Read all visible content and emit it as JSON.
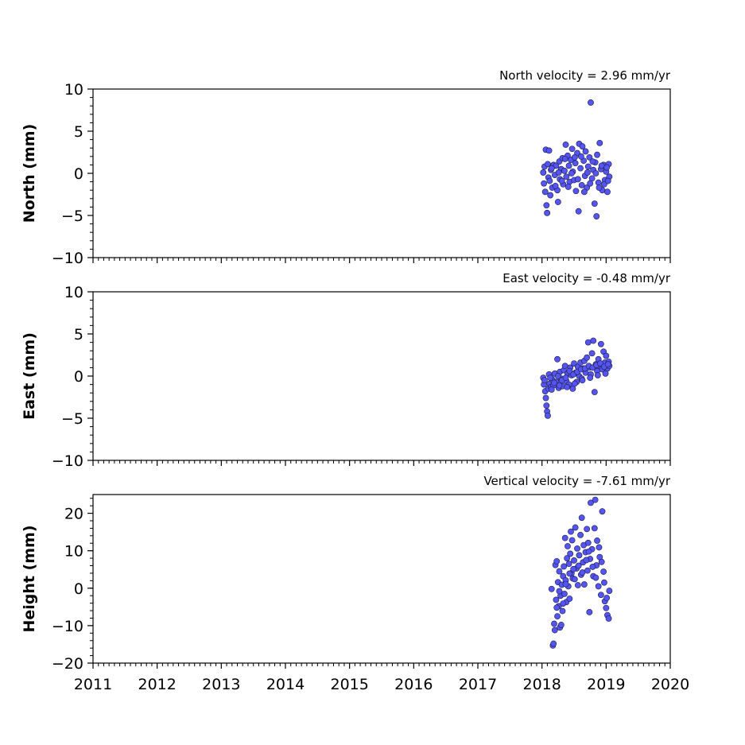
{
  "chart_data": [
    {
      "type": "scatter",
      "title": "North velocity = 2.96 mm/yr",
      "ylabel": "North (mm)",
      "xlim": [
        2011,
        2020
      ],
      "ylim": [
        -10,
        10
      ],
      "yticks": [
        -10,
        -5,
        0,
        5,
        10
      ],
      "ytick_labels": [
        "−10",
        "−5",
        "0",
        "5",
        "10"
      ],
      "xtick_labels": [],
      "series": [
        {
          "color": "#5555f5",
          "points": [
            [
              2018.02,
              0.1
            ],
            [
              2018.03,
              -1.2
            ],
            [
              2018.04,
              0.8
            ],
            [
              2018.05,
              -2.2
            ],
            [
              2018.06,
              2.8
            ],
            [
              2018.07,
              -3.8
            ],
            [
              2018.08,
              -4.7
            ],
            [
              2018.09,
              1.1
            ],
            [
              2018.1,
              -0.5
            ],
            [
              2018.11,
              2.7
            ],
            [
              2018.12,
              -0.9
            ],
            [
              2018.13,
              -2.6
            ],
            [
              2018.14,
              0.4
            ],
            [
              2018.16,
              -1.7
            ],
            [
              2018.18,
              1.0
            ],
            [
              2018.2,
              -0.2
            ],
            [
              2018.22,
              0.9
            ],
            [
              2018.24,
              -2.0
            ],
            [
              2018.25,
              -3.4
            ],
            [
              2018.27,
              1.4
            ],
            [
              2018.28,
              -0.7
            ],
            [
              2018.3,
              0.5
            ],
            [
              2018.32,
              1.8
            ],
            [
              2018.33,
              -1.3
            ],
            [
              2018.35,
              0.3
            ],
            [
              2018.37,
              3.4
            ],
            [
              2018.38,
              -0.4
            ],
            [
              2018.4,
              2.1
            ],
            [
              2018.42,
              0.9
            ],
            [
              2018.43,
              -1.0
            ],
            [
              2018.45,
              1.6
            ],
            [
              2018.47,
              2.9
            ],
            [
              2018.48,
              0.2
            ],
            [
              2018.5,
              -0.8
            ],
            [
              2018.52,
              1.2
            ],
            [
              2018.53,
              -2.1
            ],
            [
              2018.55,
              2.4
            ],
            [
              2018.57,
              -4.5
            ],
            [
              2018.58,
              3.5
            ],
            [
              2018.6,
              0.6
            ],
            [
              2018.62,
              -1.4
            ],
            [
              2018.63,
              3.2
            ],
            [
              2018.65,
              1.5
            ],
            [
              2018.67,
              -0.3
            ],
            [
              2018.68,
              2.6
            ],
            [
              2018.7,
              -1.7
            ],
            [
              2018.72,
              0.8
            ],
            [
              2018.74,
              1.9
            ],
            [
              2018.76,
              8.4
            ],
            [
              2018.78,
              -0.6
            ],
            [
              2018.8,
              0.4
            ],
            [
              2018.82,
              -3.6
            ],
            [
              2018.83,
              1.3
            ],
            [
              2018.85,
              -5.1
            ],
            [
              2018.86,
              2.2
            ],
            [
              2018.88,
              -1.1
            ],
            [
              2018.9,
              3.6
            ],
            [
              2018.92,
              0.5
            ],
            [
              2018.94,
              -2.0
            ],
            [
              2018.96,
              1.0
            ],
            [
              2018.98,
              -0.8
            ],
            [
              2019.0,
              0.2
            ],
            [
              2019.02,
              -2.2
            ],
            [
              2019.04,
              1.1
            ],
            [
              2019.05,
              -0.4
            ],
            [
              2018.15,
              0.6
            ],
            [
              2018.21,
              -1.5
            ],
            [
              2018.26,
              0.1
            ],
            [
              2018.31,
              -0.9
            ],
            [
              2018.36,
              1.7
            ],
            [
              2018.41,
              -1.6
            ],
            [
              2018.46,
              0.0
            ],
            [
              2018.51,
              1.9
            ],
            [
              2018.56,
              -0.7
            ],
            [
              2018.61,
              2.0
            ],
            [
              2018.66,
              -2.2
            ],
            [
              2018.71,
              0.1
            ],
            [
              2018.75,
              -1.2
            ],
            [
              2018.79,
              1.4
            ],
            [
              2018.84,
              0.0
            ],
            [
              2018.89,
              -1.7
            ],
            [
              2018.93,
              0.9
            ],
            [
              2018.97,
              -1.3
            ],
            [
              2019.01,
              0.7
            ],
            [
              2019.03,
              -0.9
            ]
          ]
        }
      ]
    },
    {
      "type": "scatter",
      "title": "East velocity = -0.48 mm/yr",
      "ylabel": "East (mm)",
      "xlim": [
        2011,
        2020
      ],
      "ylim": [
        -10,
        10
      ],
      "yticks": [
        -10,
        -5,
        0,
        5,
        10
      ],
      "ytick_labels": [
        "−10",
        "−5",
        "0",
        "5",
        "10"
      ],
      "xtick_labels": [],
      "series": [
        {
          "color": "#5555f5",
          "points": [
            [
              2018.02,
              -0.2
            ],
            [
              2018.03,
              -1.0
            ],
            [
              2018.04,
              -0.5
            ],
            [
              2018.05,
              -1.8
            ],
            [
              2018.06,
              -2.6
            ],
            [
              2018.07,
              -3.5
            ],
            [
              2018.08,
              -4.2
            ],
            [
              2018.09,
              -4.7
            ],
            [
              2018.1,
              -1.5
            ],
            [
              2018.11,
              0.2
            ],
            [
              2018.12,
              -0.9
            ],
            [
              2018.14,
              -1.3
            ],
            [
              2018.16,
              -0.4
            ],
            [
              2018.18,
              -1.1
            ],
            [
              2018.2,
              0.3
            ],
            [
              2018.22,
              -0.7
            ],
            [
              2018.24,
              2.0
            ],
            [
              2018.26,
              -1.4
            ],
            [
              2018.28,
              0.5
            ],
            [
              2018.3,
              -0.3
            ],
            [
              2018.32,
              -1.2
            ],
            [
              2018.34,
              0.7
            ],
            [
              2018.36,
              1.2
            ],
            [
              2018.38,
              -0.6
            ],
            [
              2018.4,
              0.3
            ],
            [
              2018.42,
              -1.0
            ],
            [
              2018.44,
              1.0
            ],
            [
              2018.46,
              0.1
            ],
            [
              2018.48,
              -1.5
            ],
            [
              2018.5,
              1.5
            ],
            [
              2018.52,
              0.4
            ],
            [
              2018.54,
              -0.7
            ],
            [
              2018.56,
              1.1
            ],
            [
              2018.58,
              0.0
            ],
            [
              2018.6,
              1.6
            ],
            [
              2018.62,
              -0.3
            ],
            [
              2018.64,
              0.9
            ],
            [
              2018.66,
              1.8
            ],
            [
              2018.68,
              0.4
            ],
            [
              2018.7,
              2.2
            ],
            [
              2018.72,
              4.0
            ],
            [
              2018.74,
              1.0
            ],
            [
              2018.76,
              0.2
            ],
            [
              2018.78,
              2.7
            ],
            [
              2018.8,
              4.2
            ],
            [
              2018.82,
              -1.9
            ],
            [
              2018.84,
              1.4
            ],
            [
              2018.86,
              0.6
            ],
            [
              2018.88,
              2.0
            ],
            [
              2018.9,
              1.2
            ],
            [
              2018.92,
              3.8
            ],
            [
              2018.94,
              0.8
            ],
            [
              2018.96,
              2.9
            ],
            [
              2018.98,
              1.6
            ],
            [
              2019.0,
              2.4
            ],
            [
              2019.02,
              0.9
            ],
            [
              2019.04,
              1.7
            ],
            [
              2019.05,
              1.2
            ],
            [
              2018.13,
              -0.2
            ],
            [
              2018.19,
              -0.8
            ],
            [
              2018.25,
              0.0
            ],
            [
              2018.31,
              -0.5
            ],
            [
              2018.37,
              -0.2
            ],
            [
              2018.43,
              0.6
            ],
            [
              2018.49,
              0.2
            ],
            [
              2018.55,
              0.5
            ],
            [
              2018.61,
              0.8
            ],
            [
              2018.67,
              0.9
            ],
            [
              2018.73,
              1.2
            ],
            [
              2018.79,
              1.0
            ],
            [
              2018.85,
              1.3
            ],
            [
              2018.91,
              1.5
            ],
            [
              2018.97,
              1.1
            ],
            [
              2019.03,
              1.4
            ],
            [
              2018.15,
              -1.6
            ],
            [
              2018.27,
              -1.1
            ],
            [
              2018.39,
              -1.3
            ],
            [
              2018.51,
              -0.9
            ],
            [
              2018.63,
              -0.5
            ],
            [
              2018.75,
              -0.2
            ],
            [
              2018.87,
              0.1
            ],
            [
              2018.99,
              0.3
            ]
          ]
        }
      ]
    },
    {
      "type": "scatter",
      "title": "Vertical velocity = -7.61 mm/yr",
      "ylabel": "Height (mm)",
      "xlim": [
        2011,
        2020
      ],
      "ylim": [
        -20,
        25
      ],
      "yticks": [
        -20,
        -10,
        0,
        10,
        20
      ],
      "ytick_labels": [
        "−20",
        "−10",
        "0",
        "10",
        "20"
      ],
      "xticks": [
        2011,
        2012,
        2013,
        2014,
        2015,
        2016,
        2017,
        2018,
        2019,
        2020
      ],
      "xtick_labels": [
        "2011",
        "2012",
        "2013",
        "2014",
        "2015",
        "2016",
        "2017",
        "2018",
        "2019",
        "2020"
      ],
      "series": [
        {
          "color": "#5555f5",
          "points": [
            [
              2018.15,
              -0.2
            ],
            [
              2018.17,
              -15.3
            ],
            [
              2018.18,
              -14.8
            ],
            [
              2018.19,
              -9.5
            ],
            [
              2018.2,
              -11.2
            ],
            [
              2018.21,
              6.2
            ],
            [
              2018.22,
              -3.1
            ],
            [
              2018.23,
              7.2
            ],
            [
              2018.24,
              -7.5
            ],
            [
              2018.25,
              1.6
            ],
            [
              2018.26,
              -4.8
            ],
            [
              2018.27,
              4.5
            ],
            [
              2018.28,
              -10.5
            ],
            [
              2018.29,
              -2.0
            ],
            [
              2018.3,
              -9.8
            ],
            [
              2018.31,
              0.9
            ],
            [
              2018.32,
              -6.1
            ],
            [
              2018.33,
              3.2
            ],
            [
              2018.34,
              5.8
            ],
            [
              2018.35,
              -1.5
            ],
            [
              2018.36,
              13.4
            ],
            [
              2018.37,
              2.1
            ],
            [
              2018.38,
              -3.7
            ],
            [
              2018.39,
              8.0
            ],
            [
              2018.4,
              11.2
            ],
            [
              2018.41,
              0.5
            ],
            [
              2018.42,
              6.5
            ],
            [
              2018.43,
              -2.8
            ],
            [
              2018.44,
              9.2
            ],
            [
              2018.45,
              15.1
            ],
            [
              2018.46,
              4.0
            ],
            [
              2018.47,
              12.8
            ],
            [
              2018.48,
              2.6
            ],
            [
              2018.5,
              7.4
            ],
            [
              2018.52,
              16.2
            ],
            [
              2018.54,
              5.3
            ],
            [
              2018.55,
              10.6
            ],
            [
              2018.56,
              0.8
            ],
            [
              2018.58,
              8.8
            ],
            [
              2018.6,
              14.2
            ],
            [
              2018.61,
              3.6
            ],
            [
              2018.62,
              18.8
            ],
            [
              2018.64,
              6.9
            ],
            [
              2018.65,
              11.5
            ],
            [
              2018.66,
              1.0
            ],
            [
              2018.68,
              9.6
            ],
            [
              2018.7,
              15.8
            ],
            [
              2018.71,
              4.7
            ],
            [
              2018.72,
              12.1
            ],
            [
              2018.74,
              -6.4
            ],
            [
              2018.75,
              7.8
            ],
            [
              2018.76,
              22.8
            ],
            [
              2018.78,
              10.4
            ],
            [
              2018.8,
              3.2
            ],
            [
              2018.82,
              16.0
            ],
            [
              2018.83,
              23.6
            ],
            [
              2018.85,
              6.1
            ],
            [
              2018.86,
              12.7
            ],
            [
              2018.88,
              0.5
            ],
            [
              2018.9,
              8.3
            ],
            [
              2018.92,
              -1.8
            ],
            [
              2018.94,
              20.5
            ],
            [
              2018.96,
              4.4
            ],
            [
              2018.98,
              -3.5
            ],
            [
              2019.0,
              -5.3
            ],
            [
              2019.02,
              -7.2
            ],
            [
              2019.04,
              -8.1
            ],
            [
              2019.05,
              -0.7
            ],
            [
              2018.51,
              2.4
            ],
            [
              2018.57,
              6.0
            ],
            [
              2018.63,
              4.2
            ],
            [
              2018.69,
              7.5
            ],
            [
              2018.73,
              9.8
            ],
            [
              2018.79,
              5.7
            ],
            [
              2018.84,
              2.8
            ],
            [
              2018.89,
              10.9
            ],
            [
              2018.93,
              7.0
            ],
            [
              2018.97,
              1.5
            ],
            [
              2019.01,
              -2.6
            ],
            [
              2018.23,
              -5.2
            ],
            [
              2018.27,
              -0.8
            ],
            [
              2018.33,
              -4.1
            ],
            [
              2018.37,
              1.1
            ],
            [
              2018.43,
              3.9
            ],
            [
              2018.49,
              5.1
            ]
          ]
        }
      ]
    }
  ]
}
